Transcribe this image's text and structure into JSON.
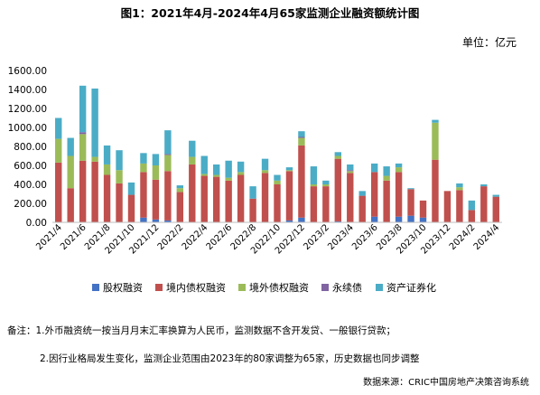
{
  "title": "图1：2021年4月-2024年4月65家监测企业融资额统计图",
  "unit": "单位：亿元",
  "notes": [
    "备注：1.外币融资统一按当月月末汇率换算为人民币，监测数据不含开发贷、一般银行贷款；",
    "2.因行业格局发生变化，监测企业范围由2023年的80家调整为65家，历史数据也同步调整"
  ],
  "source": "数据来源：CRIC中国房地产决策咨询系统",
  "chart_data": {
    "type": "bar",
    "stacked": true,
    "ylim": [
      0,
      1600
    ],
    "yticks": [
      "0.00",
      "200.00",
      "400.00",
      "600.00",
      "800.00",
      "1000.00",
      "1200.00",
      "1400.00",
      "1600.00"
    ],
    "ytick_values": [
      0,
      200,
      400,
      600,
      800,
      1000,
      1200,
      1400,
      1600
    ],
    "grid": false,
    "legend_position": "bottom",
    "categories": [
      "2021/4",
      "2021/5",
      "2021/6",
      "2021/7",
      "2021/8",
      "2021/9",
      "2021/10",
      "2021/11",
      "2021/12",
      "2022/1",
      "2022/2",
      "2022/3",
      "2022/4",
      "2022/5",
      "2022/6",
      "2022/7",
      "2022/8",
      "2022/9",
      "2022/10",
      "2022/11",
      "2022/12",
      "2023/1",
      "2023/2",
      "2023/3",
      "2023/4",
      "2023/5",
      "2023/6",
      "2023/7",
      "2023/8",
      "2023/9",
      "2023/10",
      "2023/11",
      "2023/12",
      "2024/1",
      "2024/2",
      "2024/3",
      "2024/4"
    ],
    "xtick_labels": [
      "2021/4",
      "2021/6",
      "2021/8",
      "2021/10",
      "2021/12",
      "2022/2",
      "2022/4",
      "2022/6",
      "2022/8",
      "2022/10",
      "2022/12",
      "2023/2",
      "2023/4",
      "2023/6",
      "2023/8",
      "2023/10",
      "2023/12",
      "2024/2",
      "2024/4"
    ],
    "series": [
      {
        "name": "股权融资",
        "color": "#4472C4",
        "values": [
          0,
          0,
          0,
          0,
          0,
          0,
          0,
          50,
          30,
          20,
          0,
          0,
          0,
          0,
          0,
          0,
          0,
          0,
          0,
          20,
          50,
          0,
          0,
          10,
          0,
          0,
          60,
          0,
          60,
          70,
          50,
          0,
          0,
          0,
          0,
          0,
          0
        ]
      },
      {
        "name": "境内债权融资",
        "color": "#C0504D",
        "values": [
          630,
          360,
          650,
          640,
          500,
          410,
          290,
          480,
          420,
          520,
          320,
          610,
          490,
          480,
          440,
          500,
          250,
          520,
          400,
          520,
          760,
          380,
          380,
          660,
          520,
          280,
          470,
          440,
          470,
          280,
          180,
          660,
          330,
          340,
          130,
          380,
          270
        ]
      },
      {
        "name": "境外债权融资",
        "color": "#9BBB59",
        "values": [
          250,
          340,
          280,
          50,
          110,
          140,
          0,
          90,
          150,
          170,
          40,
          80,
          20,
          20,
          30,
          30,
          0,
          30,
          40,
          10,
          80,
          20,
          20,
          30,
          20,
          0,
          0,
          50,
          50,
          0,
          0,
          390,
          0,
          30,
          0,
          0,
          0
        ]
      },
      {
        "name": "永续债",
        "color": "#8064A2",
        "values": [
          0,
          0,
          20,
          0,
          0,
          0,
          0,
          0,
          0,
          10,
          0,
          0,
          0,
          0,
          0,
          0,
          0,
          0,
          0,
          0,
          10,
          0,
          0,
          0,
          10,
          0,
          0,
          0,
          0,
          0,
          0,
          0,
          0,
          0,
          0,
          0,
          0
        ]
      },
      {
        "name": "资产证券化",
        "color": "#4BACC6",
        "values": [
          220,
          190,
          490,
          720,
          200,
          210,
          130,
          110,
          120,
          250,
          30,
          170,
          190,
          110,
          180,
          110,
          130,
          120,
          60,
          30,
          60,
          190,
          40,
          40,
          60,
          50,
          90,
          100,
          40,
          10,
          0,
          30,
          0,
          40,
          100,
          20,
          20
        ]
      }
    ]
  }
}
